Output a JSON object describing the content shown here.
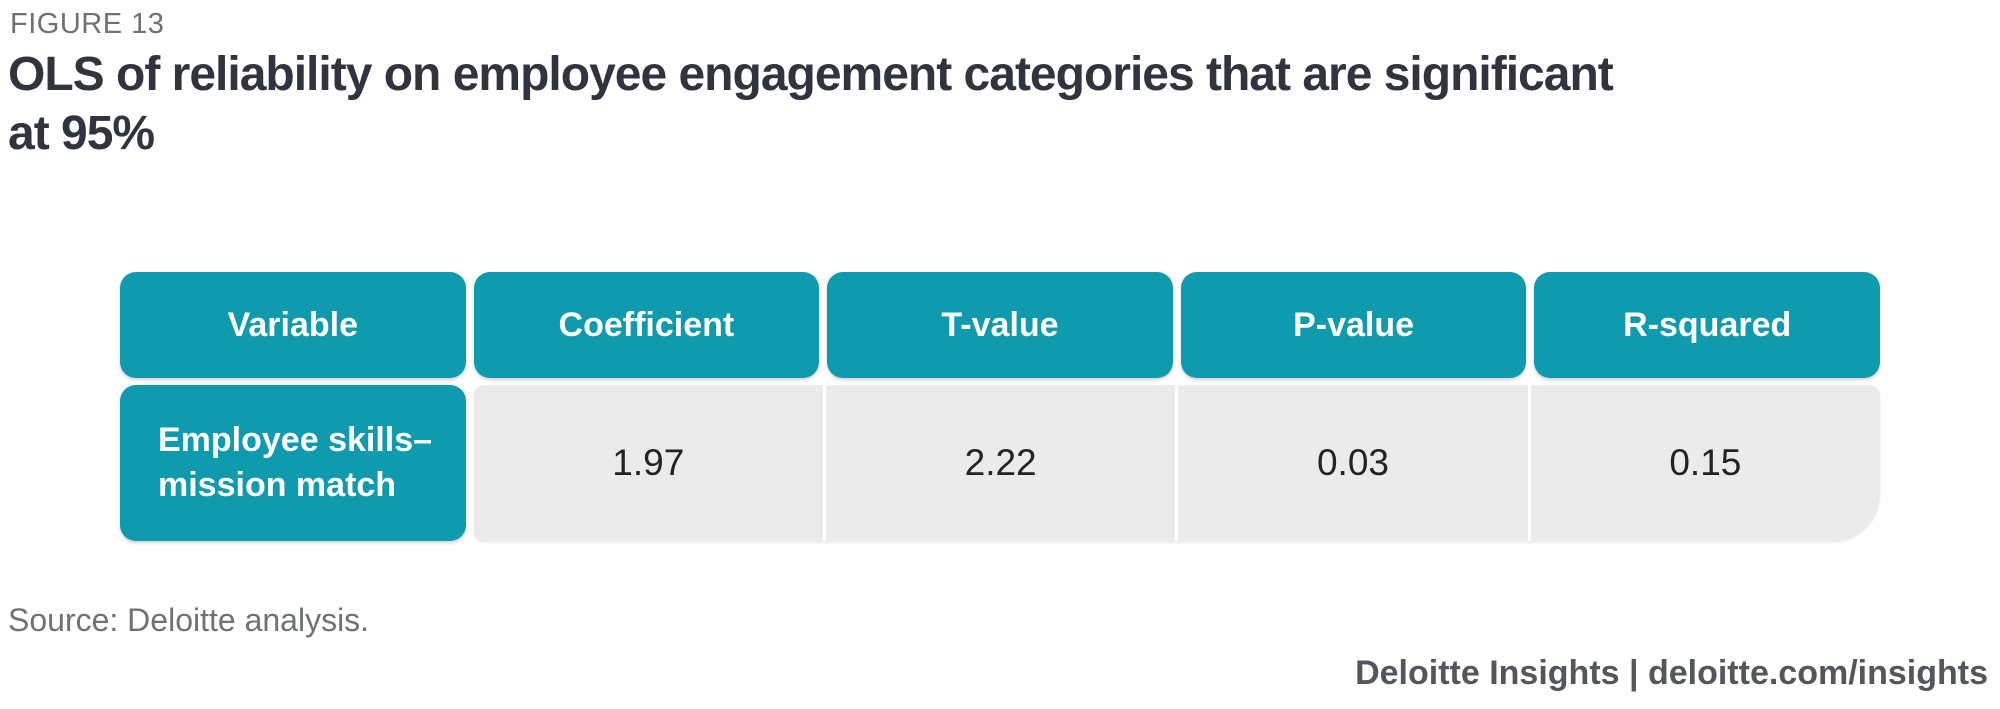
{
  "figure": {
    "label": "FIGURE 13",
    "title": "OLS of reliability on employee engagement categories that are significant\nat 95%"
  },
  "table": {
    "headers": [
      "Variable",
      "Coefficient",
      "T-value",
      "P-value",
      "R-squared"
    ],
    "rows": [
      {
        "variable": "Employee skills–mission match",
        "values": [
          "1.97",
          "2.22",
          "0.03",
          "0.15"
        ]
      }
    ]
  },
  "footer": {
    "source": "Source: Deloitte analysis.",
    "branding": "Deloitte Insights | deloitte.com/insights"
  },
  "colors": {
    "teal": "#0f9bad",
    "row_background": "#ebebeb",
    "title_text": "#31343f",
    "muted_text": "#6d7175",
    "branding_text": "#53565a"
  },
  "chart_data": {
    "type": "table",
    "title": "OLS of reliability on employee engagement categories that are significant at 95%",
    "columns": [
      "Variable",
      "Coefficient",
      "T-value",
      "P-value",
      "R-squared"
    ],
    "rows": [
      [
        "Employee skills–mission match",
        1.97,
        2.22,
        0.03,
        0.15
      ]
    ],
    "source": "Deloitte analysis"
  }
}
